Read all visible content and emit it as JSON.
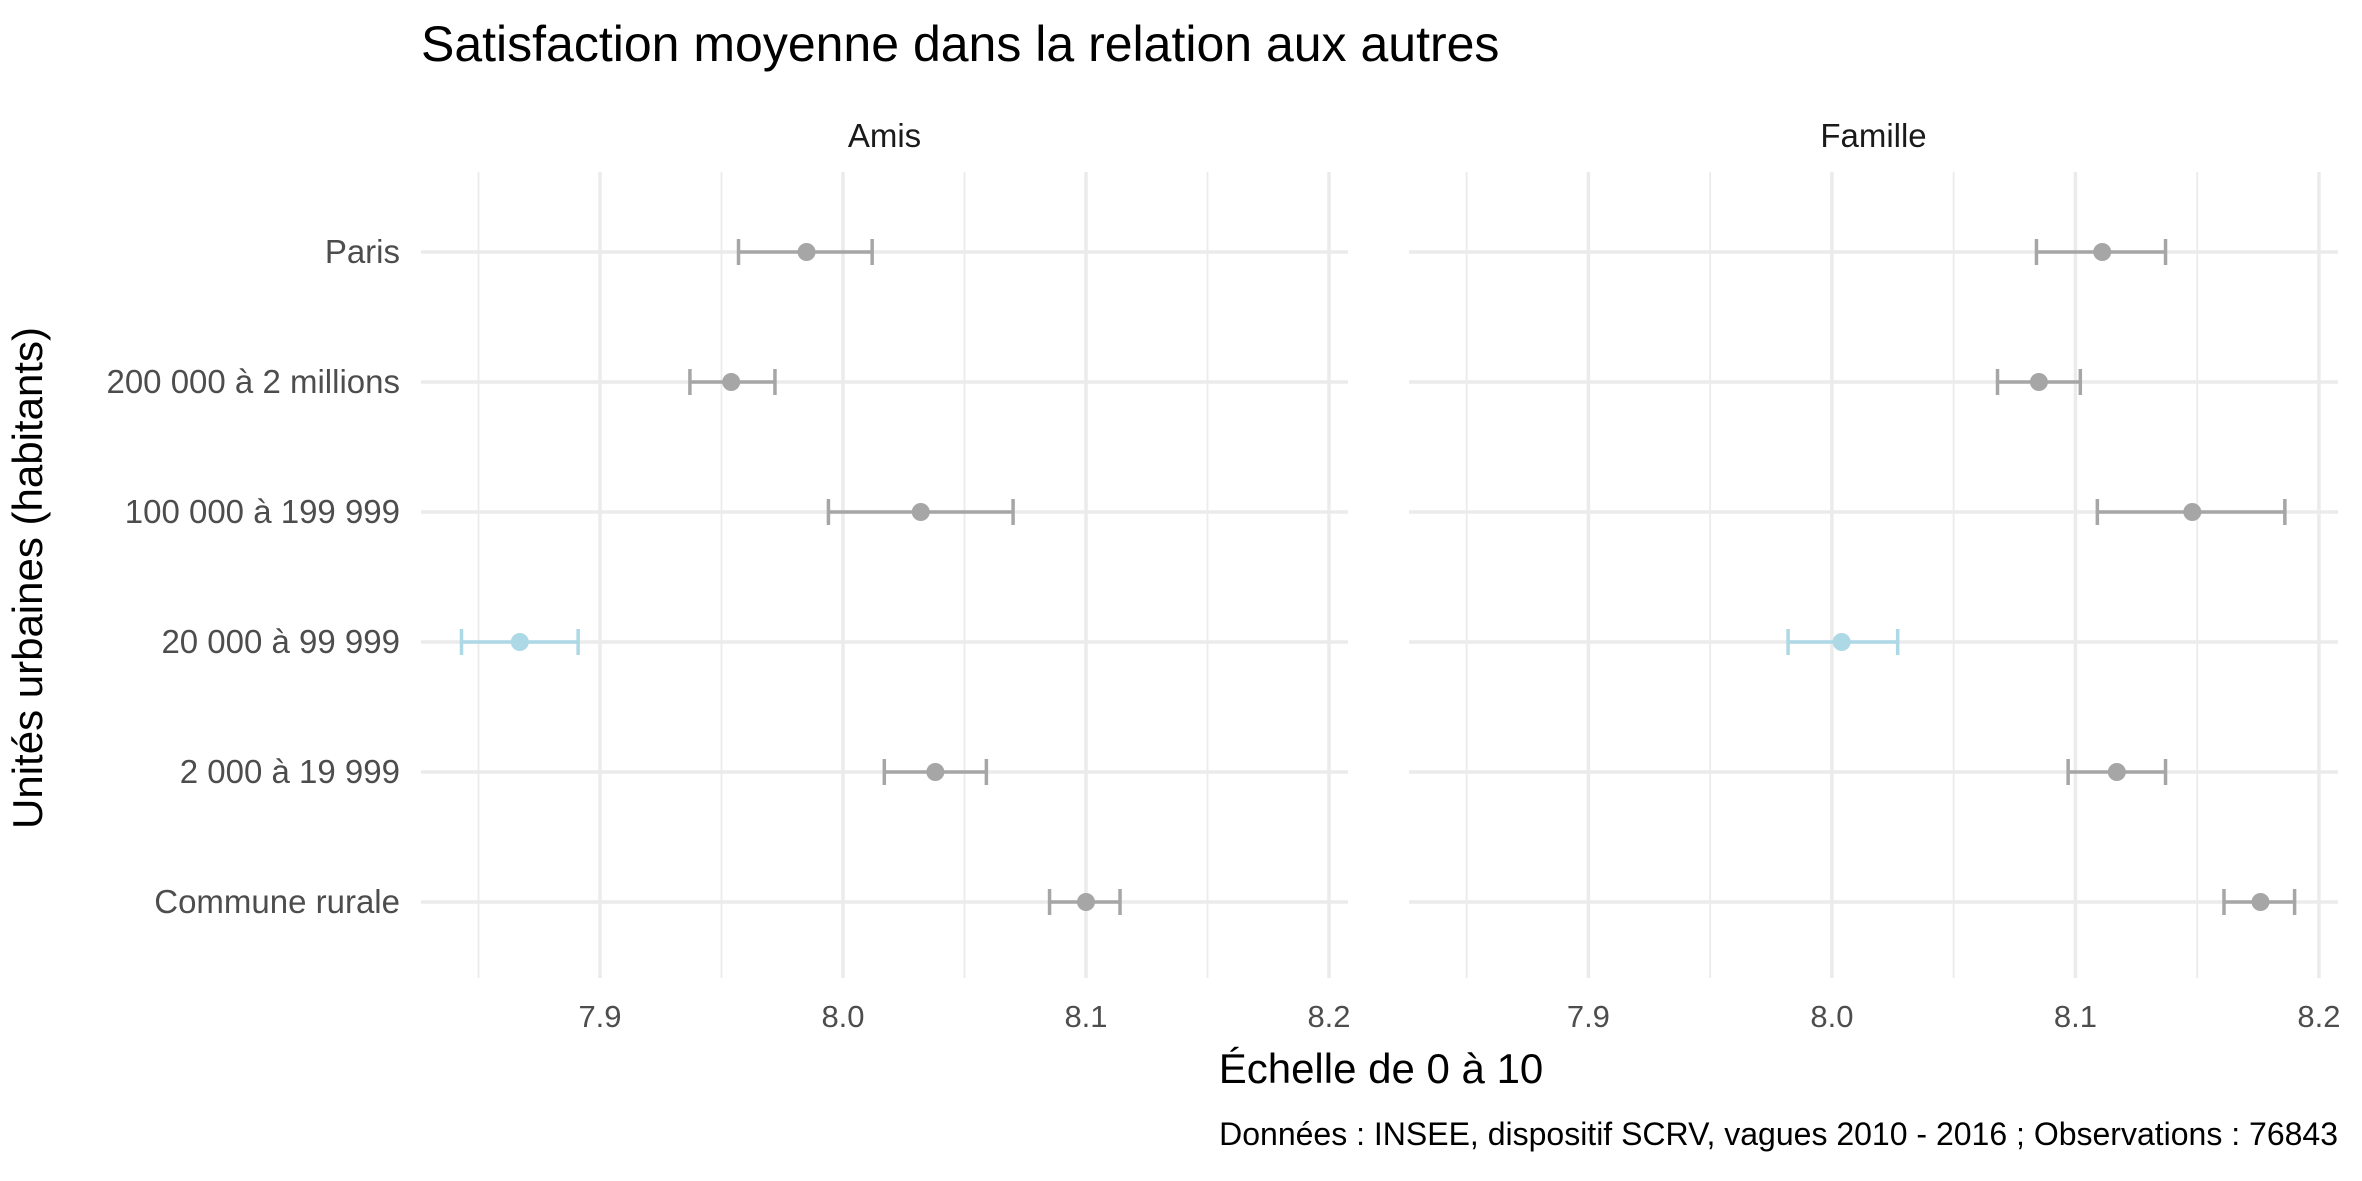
{
  "chart_data": {
    "type": "scatter",
    "subtype": "point-range with error bars, faceted",
    "title": "Satisfaction moyenne dans la relation aux autres",
    "xlabel": "Échelle de 0 à 10",
    "ylabel": "Unités urbaines (habitants)",
    "caption": "Données : INSEE, dispositif SCRV, vagues 2010 - 2016 ; Observations : 76843",
    "categories": [
      "Paris",
      "200 000 à 2 millions",
      "100 000 à 199 999",
      "20 000 à 99 999",
      "2 000 à 19 999",
      "Commune rurale"
    ],
    "xlim": [
      7.845,
      8.21
    ],
    "xticks": [
      "7.9",
      "8.0",
      "8.1",
      "8.2"
    ],
    "xtick_values": [
      7.9,
      8.0,
      8.1,
      8.2
    ],
    "grid": true,
    "legend": "none",
    "colors": {
      "default": "#a6a6a6",
      "highlight": "#add8e6",
      "grid": "#ebebeb"
    },
    "facets": [
      {
        "name": "Amis",
        "points": [
          {
            "category": "Paris",
            "mean": 7.985,
            "low": 7.957,
            "high": 8.012,
            "highlight": false
          },
          {
            "category": "200 000 à 2 millions",
            "mean": 7.954,
            "low": 7.937,
            "high": 7.972,
            "highlight": false
          },
          {
            "category": "100 000 à 199 999",
            "mean": 8.032,
            "low": 7.994,
            "high": 8.07,
            "highlight": false
          },
          {
            "category": "20 000 à 99 999",
            "mean": 7.867,
            "low": 7.843,
            "high": 7.891,
            "highlight": true
          },
          {
            "category": "2 000 à 19 999",
            "mean": 8.038,
            "low": 8.017,
            "high": 8.059,
            "highlight": false
          },
          {
            "category": "Commune rurale",
            "mean": 8.1,
            "low": 8.085,
            "high": 8.114,
            "highlight": false
          }
        ]
      },
      {
        "name": "Famille",
        "points": [
          {
            "category": "Paris",
            "mean": 8.111,
            "low": 8.084,
            "high": 8.137,
            "highlight": false
          },
          {
            "category": "200 000 à 2 millions",
            "mean": 8.085,
            "low": 8.068,
            "high": 8.102,
            "highlight": false
          },
          {
            "category": "100 000 à 199 999",
            "mean": 8.148,
            "low": 8.109,
            "high": 8.186,
            "highlight": false
          },
          {
            "category": "20 000 à 99 999",
            "mean": 8.004,
            "low": 7.982,
            "high": 8.027,
            "highlight": true
          },
          {
            "category": "2 000 à 19 999",
            "mean": 8.117,
            "low": 8.097,
            "high": 8.137,
            "highlight": false
          },
          {
            "category": "Commune rurale",
            "mean": 8.176,
            "low": 8.161,
            "high": 8.19,
            "highlight": false
          }
        ]
      }
    ]
  }
}
